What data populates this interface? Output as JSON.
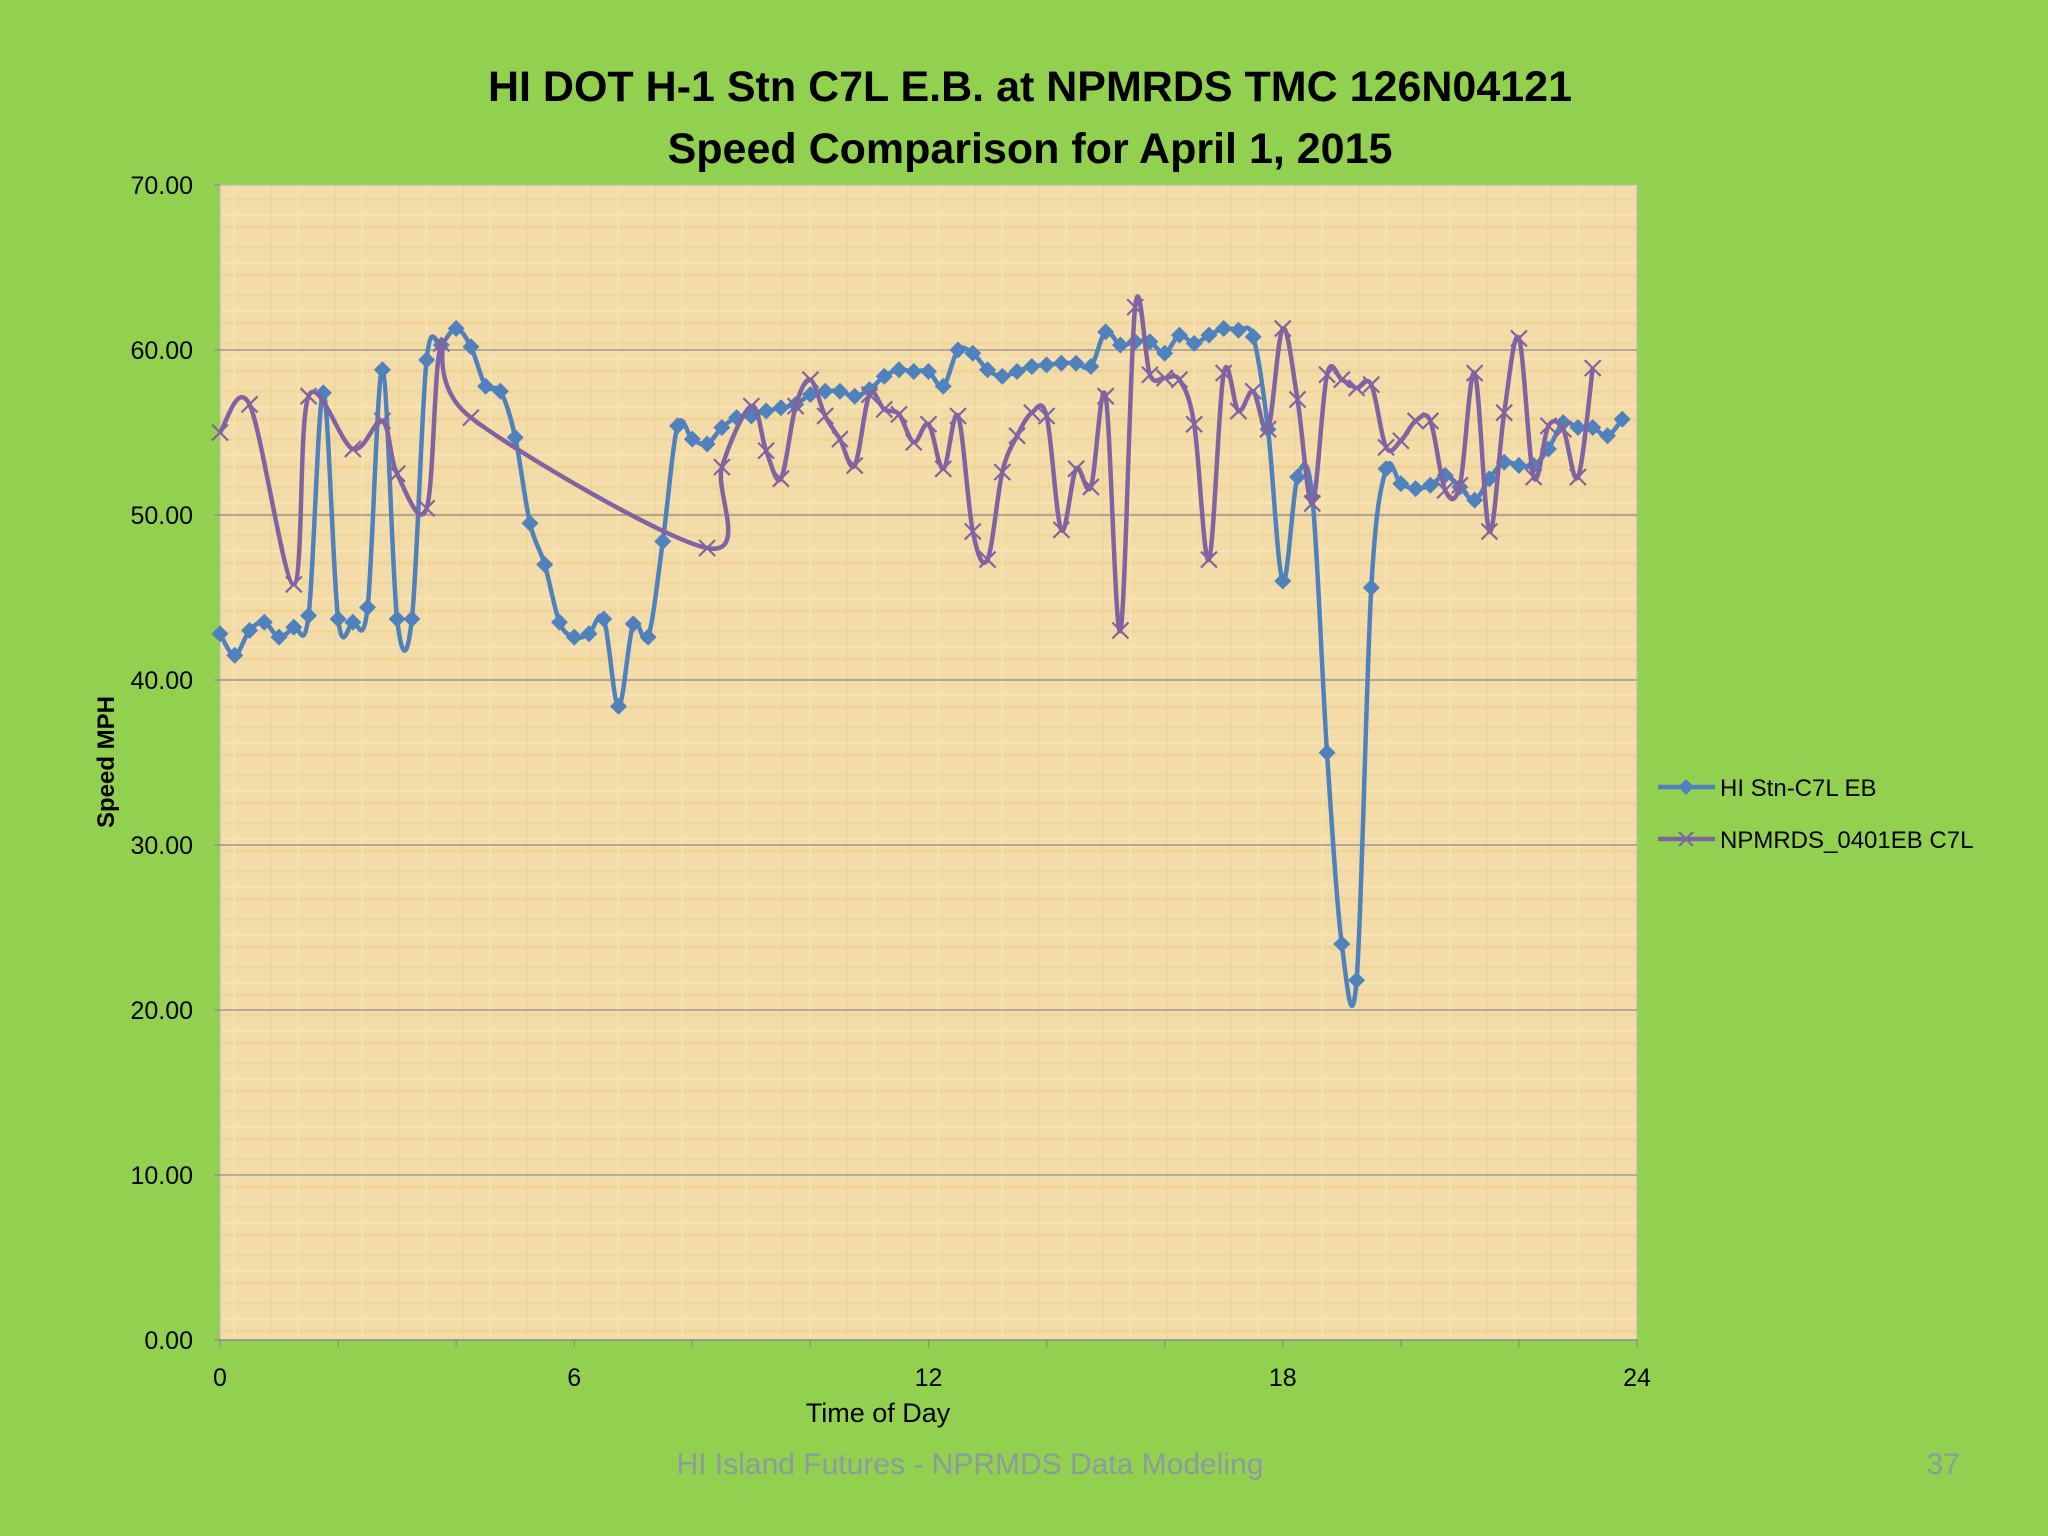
{
  "chart_data": {
    "type": "line",
    "title": "HI DOT H-1 Stn C7L E.B. at NPMRDS TMC 126N04121",
    "subtitle": "Speed Comparison for April 1, 2015",
    "xlabel": "Time of Day",
    "ylabel": "Speed MPH",
    "xlim": [
      0,
      24
    ],
    "ylim": [
      0,
      70
    ],
    "xticks": [
      0,
      6,
      12,
      18,
      24
    ],
    "yticks": [
      "0.00",
      "10.00",
      "20.00",
      "30.00",
      "40.00",
      "50.00",
      "60.00",
      "70.00"
    ],
    "grid": "horizontal",
    "legend": "right",
    "series": [
      {
        "name": "HI Stn-C7L EB",
        "color": "#4f81bd",
        "marker": "diamond",
        "x": [
          0,
          0.25,
          0.5,
          0.75,
          1,
          1.25,
          1.5,
          1.75,
          2,
          2.25,
          2.5,
          2.75,
          3,
          3.25,
          3.5,
          3.75,
          4,
          4.25,
          4.5,
          4.75,
          5,
          5.25,
          5.5,
          5.75,
          6,
          6.25,
          6.5,
          6.75,
          7,
          7.25,
          7.5,
          7.75,
          8,
          8.25,
          8.5,
          8.75,
          9,
          9.25,
          9.5,
          9.75,
          10,
          10.25,
          10.5,
          10.75,
          11,
          11.25,
          11.5,
          11.75,
          12,
          12.25,
          12.5,
          12.75,
          13,
          13.25,
          13.5,
          13.75,
          14,
          14.25,
          14.5,
          14.75,
          15,
          15.25,
          15.5,
          15.75,
          16,
          16.25,
          16.5,
          16.75,
          17,
          17.25,
          17.5,
          17.75,
          18,
          18.25,
          18.5,
          18.75,
          19,
          19.25,
          19.5,
          19.75,
          20,
          20.25,
          20.5,
          20.75,
          21,
          21.25,
          21.5,
          21.75,
          22,
          22.25,
          22.5,
          22.75,
          23,
          23.25,
          23.5,
          23.75
        ],
        "y": [
          42.8,
          41.5,
          43.0,
          43.5,
          42.6,
          43.2,
          43.9,
          57.4,
          43.7,
          43.5,
          44.4,
          58.8,
          43.7,
          43.7,
          59.4,
          60.3,
          61.3,
          60.2,
          57.8,
          57.5,
          54.7,
          49.5,
          47.0,
          43.5,
          42.6,
          42.8,
          43.7,
          38.4,
          43.4,
          42.6,
          48.4,
          55.4,
          54.6,
          54.3,
          55.3,
          55.9,
          56.0,
          56.3,
          56.5,
          56.7,
          57.3,
          57.5,
          57.5,
          57.2,
          57.6,
          58.4,
          58.8,
          58.7,
          58.7,
          57.8,
          60.0,
          59.8,
          58.8,
          58.4,
          58.7,
          59.0,
          59.1,
          59.2,
          59.2,
          59.0,
          61.1,
          60.3,
          60.5,
          60.5,
          59.8,
          60.9,
          60.4,
          60.9,
          61.3,
          61.2,
          60.8,
          55.2,
          46.0,
          52.3,
          51.1,
          35.6,
          24.0,
          21.8,
          45.6,
          52.8,
          51.9,
          51.6,
          51.8,
          52.4,
          51.7,
          50.9,
          52.2,
          53.2,
          53.0,
          53.0,
          54.0,
          55.6,
          55.3,
          55.3,
          54.8,
          55.8
        ]
      },
      {
        "name": "NPMRDS_0401EB C7L",
        "color": "#8064a2",
        "marker": "x",
        "x": [
          0,
          0.5,
          1.25,
          1.5,
          2.25,
          2.75,
          3.0,
          3.5,
          3.75,
          4.25,
          8.25,
          8.5,
          9.0,
          9.25,
          9.5,
          9.75,
          10.0,
          10.25,
          10.5,
          10.75,
          11.0,
          11.25,
          11.5,
          11.75,
          12.0,
          12.25,
          12.5,
          12.75,
          13.0,
          13.25,
          13.5,
          13.75,
          14.0,
          14.25,
          14.5,
          14.75,
          15.0,
          15.25,
          15.5,
          15.75,
          16.0,
          16.25,
          16.5,
          16.75,
          17.0,
          17.25,
          17.5,
          17.75,
          18.0,
          18.25,
          18.5,
          18.75,
          19.0,
          19.25,
          19.5,
          19.75,
          20.0,
          20.25,
          20.5,
          20.75,
          21.0,
          21.25,
          21.5,
          21.75,
          22.0,
          22.25,
          22.5,
          22.75,
          23.0,
          23.25
        ],
        "y": [
          55.0,
          56.7,
          45.8,
          57.2,
          54.0,
          55.7,
          52.5,
          50.4,
          60.4,
          55.9,
          48.0,
          52.9,
          56.6,
          53.9,
          52.2,
          56.6,
          58.2,
          56.0,
          54.6,
          53.0,
          57.3,
          56.4,
          56.1,
          54.4,
          55.5,
          52.8,
          56.0,
          49.0,
          47.3,
          52.6,
          54.8,
          56.2,
          56.0,
          49.1,
          52.8,
          51.7,
          57.2,
          43.0,
          62.6,
          58.5,
          58.3,
          58.2,
          55.5,
          47.3,
          58.6,
          56.3,
          57.5,
          55.2,
          61.3,
          57.0,
          50.7,
          58.5,
          58.2,
          57.7,
          57.9,
          54.1,
          54.5,
          55.7,
          55.7,
          51.5,
          51.8,
          58.6,
          49.0,
          56.2,
          60.7,
          52.3,
          55.4,
          55.2,
          52.3,
          58.9
        ]
      }
    ]
  },
  "footer": {
    "text": "HI Island Futures - NPRMDS Data Modeling",
    "page_number": "37"
  }
}
